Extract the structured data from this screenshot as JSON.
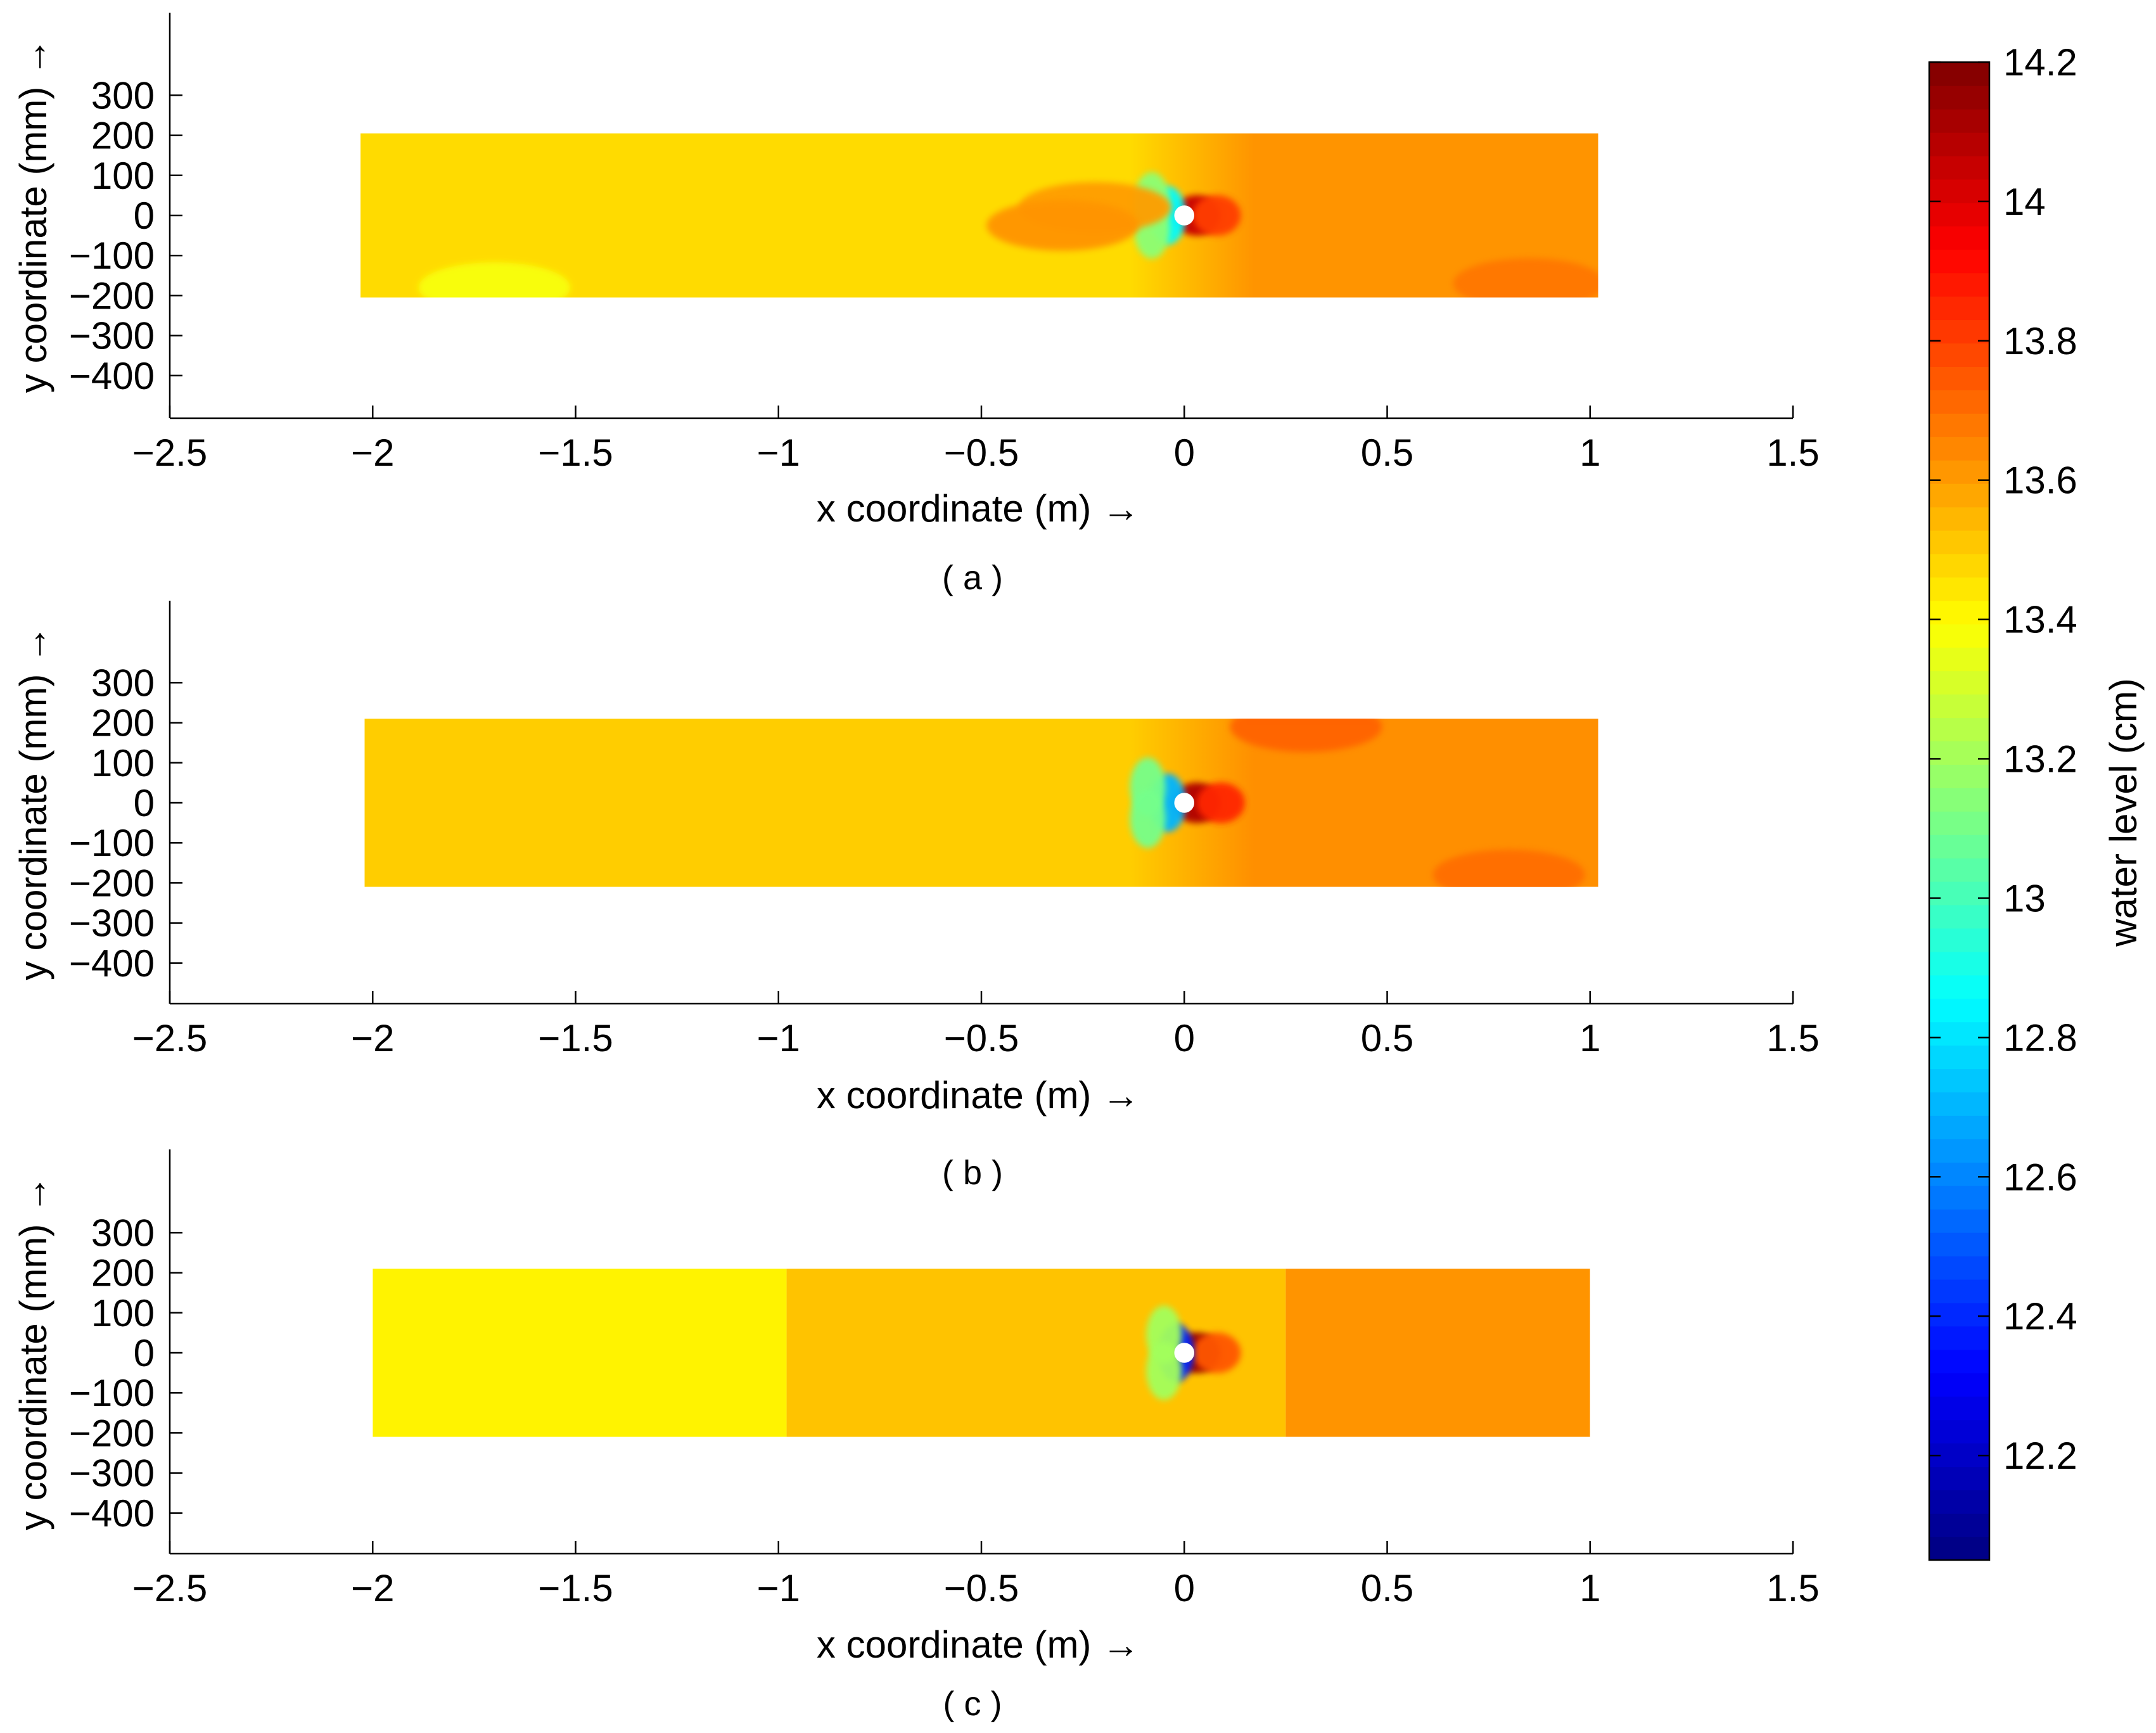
{
  "chart_data": [
    {
      "type": "heatmap",
      "panel": "(a)",
      "caption": "( a )",
      "xlabel": "x coordinate (m) →",
      "ylabel": "y coordinate (mm) →",
      "xlim": [
        -2.5,
        1.5
      ],
      "ylim": [
        -500,
        500
      ],
      "xticks": [
        -2.5,
        -2,
        -1.5,
        -1,
        -0.5,
        0,
        0.5,
        1,
        1.5
      ],
      "xtick_labels": [
        "−2.5",
        "−2",
        "−1.5",
        "−1",
        "−0.5",
        "0",
        "0.5",
        "1",
        "1.5"
      ],
      "yticks": [
        300,
        200,
        100,
        0,
        -100,
        -200,
        -300,
        -400
      ],
      "ytick_labels": [
        "300",
        "200",
        "100",
        "0",
        "−100",
        "−200",
        "−300",
        "−400"
      ],
      "domain": {
        "x": [
          -2.03,
          1.02
        ],
        "y": [
          -205,
          205
        ]
      },
      "background_level_upstream": 13.47,
      "background_level_downstream": 13.62,
      "cylinder": {
        "x": 0,
        "y": 0,
        "r_mm": 25
      },
      "features": [
        {
          "x": 0.03,
          "y": 0,
          "level": 14.05,
          "kind": "peak"
        },
        {
          "x": 0.08,
          "y": 0,
          "level": 13.8,
          "kind": "peak"
        },
        {
          "x": -0.04,
          "y": 0,
          "level": 12.85,
          "kind": "trough"
        },
        {
          "x": -0.08,
          "y": 35,
          "level": 13.15,
          "kind": "trough"
        },
        {
          "x": -0.08,
          "y": -35,
          "level": 13.15,
          "kind": "trough"
        },
        {
          "x": -0.22,
          "y": 20,
          "level": 13.6,
          "kind": "peak"
        },
        {
          "x": -0.3,
          "y": -25,
          "level": 13.62,
          "kind": "peak"
        },
        {
          "x": 0.85,
          "y": -170,
          "level": 13.68,
          "kind": "peak"
        },
        {
          "x": -1.7,
          "y": -180,
          "level": 13.38,
          "kind": "trough"
        }
      ]
    },
    {
      "type": "heatmap",
      "panel": "(b)",
      "caption": "( b )",
      "xlabel": "x coordinate (m) →",
      "ylabel": "y coordinate (mm) →",
      "xlim": [
        -2.5,
        1.5
      ],
      "ylim": [
        -500,
        500
      ],
      "xticks": [
        -2.5,
        -2,
        -1.5,
        -1,
        -0.5,
        0,
        0.5,
        1,
        1.5
      ],
      "xtick_labels": [
        "−2.5",
        "−2",
        "−1.5",
        "−1",
        "−0.5",
        "0",
        "0.5",
        "1",
        "1.5"
      ],
      "yticks": [
        300,
        200,
        100,
        0,
        -100,
        -200,
        -300,
        -400
      ],
      "ytick_labels": [
        "300",
        "200",
        "100",
        "0",
        "−100",
        "−200",
        "−300",
        "−400"
      ],
      "domain": {
        "x": [
          -2.02,
          1.02
        ],
        "y": [
          -210,
          210
        ]
      },
      "background_level_upstream": 13.5,
      "background_level_downstream": 13.63,
      "cylinder": {
        "x": 0,
        "y": 0,
        "r_mm": 25
      },
      "features": [
        {
          "x": 0.03,
          "y": 0,
          "level": 14.1,
          "kind": "peak"
        },
        {
          "x": 0.09,
          "y": 0,
          "level": 13.85,
          "kind": "peak"
        },
        {
          "x": -0.04,
          "y": 0,
          "level": 12.7,
          "kind": "trough"
        },
        {
          "x": -0.09,
          "y": 40,
          "level": 13.1,
          "kind": "trough"
        },
        {
          "x": -0.09,
          "y": -40,
          "level": 13.1,
          "kind": "trough"
        },
        {
          "x": 0.3,
          "y": 190,
          "level": 13.72,
          "kind": "peak"
        },
        {
          "x": 0.8,
          "y": -180,
          "level": 13.7,
          "kind": "peak"
        }
      ]
    },
    {
      "type": "heatmap",
      "panel": "(c)",
      "caption": "( c )",
      "xlabel": "x coordinate (m) →",
      "ylabel": "y coordinate (mm) →",
      "xlim": [
        -2.5,
        1.5
      ],
      "ylim": [
        -500,
        500
      ],
      "xticks": [
        -2.5,
        -2,
        -1.5,
        -1,
        -0.5,
        0,
        0.5,
        1,
        1.5
      ],
      "xtick_labels": [
        "−2.5",
        "−2",
        "−1.5",
        "−1",
        "−0.5",
        "0",
        "0.5",
        "1",
        "1.5"
      ],
      "yticks": [
        300,
        200,
        100,
        0,
        -100,
        -200,
        -300,
        -400
      ],
      "ytick_labels": [
        "300",
        "200",
        "100",
        "0",
        "−100",
        "−200",
        "−300",
        "−400"
      ],
      "domain": {
        "x": [
          -2.0,
          1.0
        ],
        "y": [
          -210,
          210
        ]
      },
      "zones": [
        {
          "x_from": -2.0,
          "x_to": -0.98,
          "level": 13.42
        },
        {
          "x_from": -0.98,
          "x_to": 0.25,
          "level": 13.52
        },
        {
          "x_from": 0.25,
          "x_to": 1.0,
          "level": 13.62
        }
      ],
      "cylinder": {
        "x": 0,
        "y": 0,
        "r_mm": 25
      },
      "features": [
        {
          "x": 0.03,
          "y": 0,
          "level": 14.15,
          "kind": "peak"
        },
        {
          "x": 0.08,
          "y": 0,
          "level": 13.75,
          "kind": "peak"
        },
        {
          "x": -0.02,
          "y": 0,
          "level": 12.4,
          "kind": "trough"
        },
        {
          "x": -0.05,
          "y": 45,
          "level": 13.2,
          "kind": "trough"
        },
        {
          "x": -0.05,
          "y": -45,
          "level": 13.2,
          "kind": "trough"
        }
      ]
    }
  ],
  "colorbar": {
    "label": "water level (cm)",
    "min": 12.05,
    "max": 14.2,
    "ticks": [
      14.2,
      14,
      13.8,
      13.6,
      13.4,
      13.2,
      13,
      12.8,
      12.6,
      12.4,
      12.2
    ],
    "tick_labels": [
      "14.2",
      "14",
      "13.8",
      "13.6",
      "13.4",
      "13.2",
      "13",
      "12.8",
      "12.6",
      "12.4",
      "12.2"
    ],
    "colormap": "jet",
    "levels": 64
  }
}
